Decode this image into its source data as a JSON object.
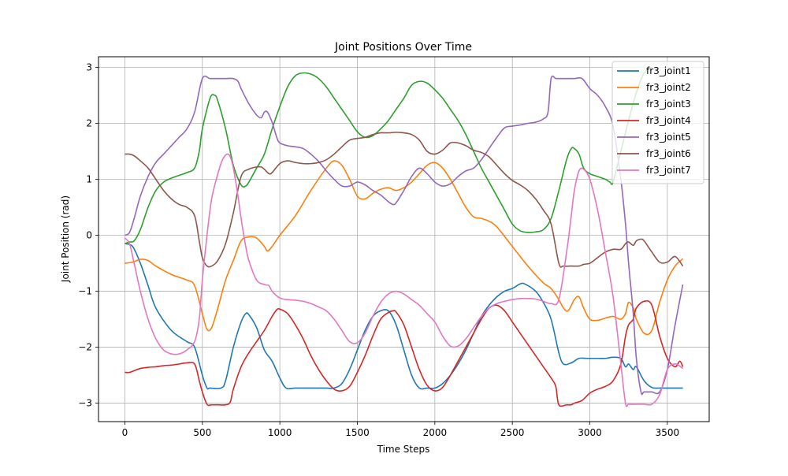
{
  "chart_data": {
    "type": "line",
    "title": "Joint Positions Over Time",
    "xlabel": "Time Steps",
    "ylabel": "Joint Position (rad)",
    "xlim": [
      -170,
      3770
    ],
    "ylim": [
      -3.33,
      3.19
    ],
    "xticks": [
      0,
      500,
      1000,
      1500,
      2000,
      2500,
      3000,
      3500
    ],
    "yticks": [
      -3,
      -2,
      -1,
      0,
      1,
      2,
      3
    ],
    "xtick_labels": [
      "0",
      "500",
      "1000",
      "1500",
      "2000",
      "2500",
      "3000",
      "3500"
    ],
    "ytick_labels": [
      "−3",
      "−2",
      "−1",
      "0",
      "1",
      "2",
      "3"
    ],
    "grid": true,
    "legend_position": "top-right",
    "series": [
      {
        "name": "fr3_joint1",
        "color": "#1f77b4",
        "x": [
          0,
          50,
          100,
          150,
          200,
          300,
          400,
          450,
          500,
          530,
          550,
          620,
          650,
          700,
          750,
          780,
          800,
          850,
          900,
          950,
          1000,
          1040,
          1100,
          1200,
          1300,
          1350,
          1400,
          1450,
          1500,
          1550,
          1600,
          1650,
          1700,
          1750,
          1800,
          1850,
          1900,
          1950,
          2000,
          2050,
          2100,
          2150,
          2200,
          2250,
          2300,
          2350,
          2400,
          2450,
          2500,
          2550,
          2580,
          2650,
          2700,
          2750,
          2800,
          2830,
          2880,
          2930,
          2980,
          3050,
          3100,
          3150,
          3200,
          3230,
          3250,
          3280,
          3300,
          3350,
          3400,
          3450,
          3500,
          3550,
          3600
        ],
        "y": [
          -0.15,
          -0.2,
          -0.5,
          -0.9,
          -1.3,
          -1.7,
          -1.9,
          -2.0,
          -2.5,
          -2.73,
          -2.73,
          -2.73,
          -2.6,
          -2.0,
          -1.55,
          -1.4,
          -1.42,
          -1.65,
          -2.05,
          -2.25,
          -2.55,
          -2.73,
          -2.73,
          -2.73,
          -2.73,
          -2.73,
          -2.65,
          -2.4,
          -2.05,
          -1.7,
          -1.45,
          -1.35,
          -1.35,
          -1.6,
          -2.05,
          -2.5,
          -2.73,
          -2.73,
          -2.73,
          -2.65,
          -2.5,
          -2.3,
          -2.05,
          -1.75,
          -1.45,
          -1.25,
          -1.1,
          -1.0,
          -0.95,
          -0.87,
          -0.87,
          -1.0,
          -1.2,
          -1.5,
          -2.1,
          -2.3,
          -2.28,
          -2.2,
          -2.2,
          -2.2,
          -2.2,
          -2.18,
          -2.2,
          -2.35,
          -2.3,
          -2.4,
          -2.35,
          -2.6,
          -2.72,
          -2.73,
          -2.73,
          -2.73,
          -2.73
        ]
      },
      {
        "name": "fr3_joint2",
        "color": "#ff7f0e",
        "x": [
          0,
          50,
          100,
          150,
          200,
          300,
          400,
          450,
          500,
          530,
          560,
          600,
          650,
          700,
          750,
          800,
          850,
          900,
          920,
          950,
          1000,
          1100,
          1200,
          1300,
          1350,
          1400,
          1450,
          1500,
          1550,
          1600,
          1650,
          1700,
          1750,
          1800,
          1850,
          1900,
          1950,
          2000,
          2050,
          2100,
          2150,
          2200,
          2250,
          2300,
          2350,
          2400,
          2500,
          2600,
          2700,
          2750,
          2800,
          2830,
          2860,
          2900,
          2930,
          2960,
          3000,
          3050,
          3100,
          3150,
          3200,
          3230,
          3250,
          3280,
          3300,
          3350,
          3400,
          3450,
          3500,
          3550,
          3600
        ],
        "y": [
          -0.5,
          -0.48,
          -0.43,
          -0.45,
          -0.55,
          -0.7,
          -0.8,
          -0.9,
          -1.4,
          -1.68,
          -1.65,
          -1.3,
          -0.8,
          -0.45,
          -0.1,
          -0.03,
          -0.05,
          -0.2,
          -0.28,
          -0.2,
          0.0,
          0.35,
          0.8,
          1.2,
          1.33,
          1.25,
          1.0,
          0.7,
          0.65,
          0.75,
          0.82,
          0.85,
          0.8,
          0.85,
          0.95,
          1.1,
          1.25,
          1.3,
          1.2,
          1.0,
          0.75,
          0.5,
          0.33,
          0.3,
          0.25,
          0.15,
          -0.2,
          -0.55,
          -0.85,
          -0.95,
          -1.15,
          -1.3,
          -1.35,
          -1.15,
          -1.1,
          -1.3,
          -1.5,
          -1.52,
          -1.48,
          -1.45,
          -1.5,
          -1.4,
          -1.2,
          -1.3,
          -1.5,
          -1.75,
          -1.7,
          -1.2,
          -0.8,
          -0.55,
          -0.42
        ]
      },
      {
        "name": "fr3_joint3",
        "color": "#2ca02c",
        "x": [
          0,
          30,
          60,
          100,
          150,
          200,
          250,
          300,
          350,
          400,
          450,
          480,
          500,
          550,
          580,
          600,
          650,
          700,
          750,
          780,
          800,
          850,
          900,
          950,
          1000,
          1050,
          1100,
          1150,
          1200,
          1250,
          1300,
          1350,
          1400,
          1450,
          1500,
          1550,
          1600,
          1650,
          1700,
          1750,
          1800,
          1850,
          1900,
          1950,
          2000,
          2050,
          2100,
          2150,
          2200,
          2250,
          2300,
          2350,
          2400,
          2450,
          2500,
          2550,
          2600,
          2650,
          2700,
          2750,
          2800,
          2850,
          2880,
          2900,
          2930,
          2960,
          3000,
          3050,
          3100,
          3130,
          3150,
          3200,
          3250,
          3300,
          3350,
          3400
        ],
        "y": [
          -0.15,
          -0.12,
          -0.1,
          0.1,
          0.5,
          0.8,
          0.95,
          1.02,
          1.07,
          1.12,
          1.2,
          1.5,
          1.9,
          2.45,
          2.5,
          2.4,
          1.9,
          1.25,
          0.9,
          0.88,
          0.95,
          1.2,
          1.45,
          1.9,
          2.3,
          2.65,
          2.85,
          2.9,
          2.88,
          2.8,
          2.65,
          2.45,
          2.25,
          2.05,
          1.85,
          1.75,
          1.78,
          1.9,
          2.05,
          2.25,
          2.45,
          2.68,
          2.75,
          2.72,
          2.6,
          2.45,
          2.25,
          2.05,
          1.8,
          1.5,
          1.2,
          0.95,
          0.7,
          0.45,
          0.2,
          0.08,
          0.05,
          0.06,
          0.1,
          0.3,
          0.8,
          1.35,
          1.55,
          1.55,
          1.45,
          1.2,
          1.1,
          1.05,
          1.0,
          0.95,
          0.95,
          1.5,
          2.05,
          2.55,
          2.9,
          3.0
        ]
      },
      {
        "name": "fr3_joint4",
        "color": "#d62728",
        "x": [
          0,
          30,
          60,
          100,
          150,
          200,
          250,
          300,
          350,
          400,
          450,
          480,
          500,
          530,
          560,
          600,
          650,
          680,
          700,
          750,
          800,
          850,
          900,
          950,
          980,
          1000,
          1050,
          1100,
          1150,
          1200,
          1250,
          1300,
          1350,
          1400,
          1450,
          1500,
          1550,
          1600,
          1650,
          1700,
          1730,
          1750,
          1800,
          1850,
          1900,
          1950,
          2000,
          2050,
          2100,
          2150,
          2200,
          2250,
          2300,
          2350,
          2400,
          2450,
          2500,
          2550,
          2600,
          2650,
          2700,
          2750,
          2780,
          2800,
          2850,
          2880,
          2900,
          2950,
          3000,
          3050,
          3100,
          3150,
          3200,
          3230,
          3250,
          3280,
          3300,
          3350,
          3400,
          3450,
          3500,
          3550,
          3580,
          3600
        ],
        "y": [
          -2.45,
          -2.45,
          -2.42,
          -2.38,
          -2.36,
          -2.35,
          -2.33,
          -2.32,
          -2.3,
          -2.28,
          -2.3,
          -2.6,
          -2.8,
          -3.02,
          -3.03,
          -3.03,
          -3.03,
          -2.98,
          -2.75,
          -2.35,
          -2.1,
          -1.9,
          -1.7,
          -1.45,
          -1.33,
          -1.32,
          -1.4,
          -1.6,
          -1.85,
          -2.15,
          -2.4,
          -2.6,
          -2.75,
          -2.78,
          -2.7,
          -2.45,
          -2.15,
          -1.8,
          -1.5,
          -1.38,
          -1.35,
          -1.37,
          -1.6,
          -2.0,
          -2.4,
          -2.68,
          -2.78,
          -2.72,
          -2.5,
          -2.25,
          -2.0,
          -1.75,
          -1.5,
          -1.3,
          -1.25,
          -1.35,
          -1.55,
          -1.75,
          -1.95,
          -2.15,
          -2.35,
          -2.55,
          -2.7,
          -3.03,
          -3.03,
          -3.03,
          -3.0,
          -2.95,
          -2.82,
          -2.75,
          -2.7,
          -2.6,
          -2.3,
          -1.8,
          -1.6,
          -1.5,
          -1.3,
          -1.18,
          -1.25,
          -1.8,
          -2.2,
          -2.35,
          -2.25,
          -2.35
        ]
      },
      {
        "name": "fr3_joint5",
        "color": "#9467bd",
        "x": [
          0,
          30,
          60,
          100,
          150,
          200,
          250,
          300,
          350,
          400,
          450,
          500,
          550,
          600,
          650,
          700,
          730,
          750,
          800,
          850,
          880,
          900,
          920,
          950,
          980,
          1000,
          1050,
          1100,
          1150,
          1200,
          1250,
          1300,
          1350,
          1400,
          1450,
          1500,
          1550,
          1600,
          1650,
          1700,
          1730,
          1750,
          1800,
          1850,
          1900,
          1950,
          2000,
          2050,
          2100,
          2150,
          2200,
          2250,
          2300,
          2350,
          2400,
          2450,
          2500,
          2550,
          2600,
          2650,
          2700,
          2730,
          2750,
          2780,
          2800,
          2850,
          2900,
          2950,
          3000,
          3050,
          3100,
          3150,
          3200,
          3230,
          3250,
          3280,
          3300,
          3330,
          3350,
          3400,
          3450,
          3500,
          3550,
          3600
        ],
        "y": [
          0.0,
          0.05,
          0.3,
          0.7,
          1.05,
          1.3,
          1.45,
          1.6,
          1.75,
          1.9,
          2.2,
          2.8,
          2.8,
          2.8,
          2.8,
          2.8,
          2.75,
          2.62,
          2.35,
          2.15,
          2.1,
          2.2,
          2.2,
          2.02,
          1.75,
          1.65,
          1.6,
          1.58,
          1.55,
          1.45,
          1.32,
          1.15,
          1.0,
          0.88,
          0.88,
          0.95,
          0.9,
          0.8,
          0.72,
          0.6,
          0.55,
          0.58,
          0.8,
          1.05,
          1.2,
          1.1,
          0.95,
          0.88,
          0.92,
          1.05,
          1.15,
          1.2,
          1.35,
          1.55,
          1.75,
          1.92,
          1.95,
          1.97,
          2.0,
          2.02,
          2.08,
          2.2,
          2.8,
          2.8,
          2.8,
          2.8,
          2.8,
          2.8,
          2.62,
          2.5,
          2.3,
          1.95,
          1.0,
          0.2,
          -0.5,
          -1.4,
          -2.2,
          -2.8,
          -2.8,
          -2.8,
          -2.8,
          -2.4,
          -1.6,
          -0.88
        ]
      },
      {
        "name": "fr3_joint6",
        "color": "#8c564b",
        "x": [
          0,
          30,
          60,
          100,
          150,
          200,
          250,
          300,
          350,
          400,
          450,
          480,
          500,
          530,
          560,
          600,
          650,
          700,
          750,
          800,
          850,
          880,
          900,
          930,
          950,
          1000,
          1050,
          1100,
          1150,
          1200,
          1250,
          1300,
          1350,
          1400,
          1450,
          1500,
          1550,
          1600,
          1650,
          1700,
          1750,
          1800,
          1850,
          1900,
          1950,
          2000,
          2050,
          2100,
          2150,
          2200,
          2250,
          2300,
          2350,
          2400,
          2450,
          2500,
          2550,
          2600,
          2650,
          2700,
          2750,
          2800,
          2830,
          2880,
          2930,
          2960,
          3000,
          3050,
          3100,
          3150,
          3200,
          3230,
          3250,
          3280,
          3300,
          3330,
          3350,
          3400,
          3450,
          3500,
          3550,
          3600
        ],
        "y": [
          1.45,
          1.45,
          1.42,
          1.33,
          1.2,
          1.0,
          0.8,
          0.65,
          0.55,
          0.5,
          0.35,
          -0.1,
          -0.4,
          -0.55,
          -0.55,
          -0.45,
          -0.15,
          0.4,
          1.05,
          1.18,
          1.22,
          1.22,
          1.18,
          1.1,
          1.12,
          1.28,
          1.33,
          1.3,
          1.28,
          1.28,
          1.3,
          1.35,
          1.45,
          1.58,
          1.7,
          1.73,
          1.75,
          1.8,
          1.83,
          1.83,
          1.84,
          1.83,
          1.8,
          1.7,
          1.5,
          1.45,
          1.52,
          1.65,
          1.65,
          1.6,
          1.52,
          1.48,
          1.4,
          1.25,
          1.1,
          0.98,
          0.9,
          0.8,
          0.65,
          0.45,
          0.2,
          -0.5,
          -0.55,
          -0.55,
          -0.55,
          -0.52,
          -0.5,
          -0.4,
          -0.3,
          -0.25,
          -0.25,
          -0.15,
          -0.12,
          -0.18,
          -0.1,
          -0.07,
          -0.1,
          -0.3,
          -0.48,
          -0.48,
          -0.38,
          -0.55
        ]
      },
      {
        "name": "fr3_joint7",
        "color": "#e377c2",
        "x": [
          0,
          30,
          60,
          100,
          150,
          200,
          250,
          300,
          350,
          400,
          450,
          480,
          500,
          530,
          560,
          600,
          630,
          660,
          680,
          700,
          730,
          750,
          780,
          800,
          850,
          900,
          930,
          950,
          1000,
          1050,
          1100,
          1150,
          1200,
          1250,
          1300,
          1350,
          1400,
          1450,
          1500,
          1550,
          1600,
          1650,
          1700,
          1750,
          1800,
          1850,
          1900,
          1950,
          2000,
          2050,
          2100,
          2150,
          2200,
          2250,
          2300,
          2350,
          2400,
          2450,
          2500,
          2550,
          2600,
          2650,
          2700,
          2750,
          2800,
          2850,
          2880,
          2900,
          2930,
          2960,
          3000,
          3050,
          3100,
          3150,
          3200,
          3230,
          3250,
          3300,
          3350,
          3400,
          3450,
          3500,
          3550,
          3600
        ],
        "y": [
          -0.05,
          -0.15,
          -0.5,
          -1.0,
          -1.5,
          -1.85,
          -2.05,
          -2.12,
          -2.12,
          -2.05,
          -1.9,
          -1.5,
          -0.8,
          0.0,
          0.65,
          1.1,
          1.35,
          1.45,
          1.4,
          1.2,
          0.7,
          0.3,
          -0.2,
          -0.45,
          -0.8,
          -0.88,
          -0.9,
          -1.0,
          -1.12,
          -1.15,
          -1.16,
          -1.18,
          -1.22,
          -1.28,
          -1.35,
          -1.5,
          -1.7,
          -1.9,
          -1.92,
          -1.75,
          -1.45,
          -1.2,
          -1.05,
          -1.0,
          -1.05,
          -1.15,
          -1.25,
          -1.4,
          -1.55,
          -1.8,
          -1.98,
          -1.98,
          -1.85,
          -1.65,
          -1.45,
          -1.3,
          -1.22,
          -1.18,
          -1.15,
          -1.13,
          -1.13,
          -1.14,
          -1.18,
          -1.22,
          -1.15,
          -0.3,
          0.35,
          0.8,
          1.15,
          1.18,
          1.0,
          0.45,
          -0.3,
          -1.1,
          -2.3,
          -3.0,
          -3.02,
          -3.02,
          -3.02,
          -3.02,
          -2.85,
          -2.4,
          -2.3,
          -2.38
        ]
      }
    ]
  }
}
